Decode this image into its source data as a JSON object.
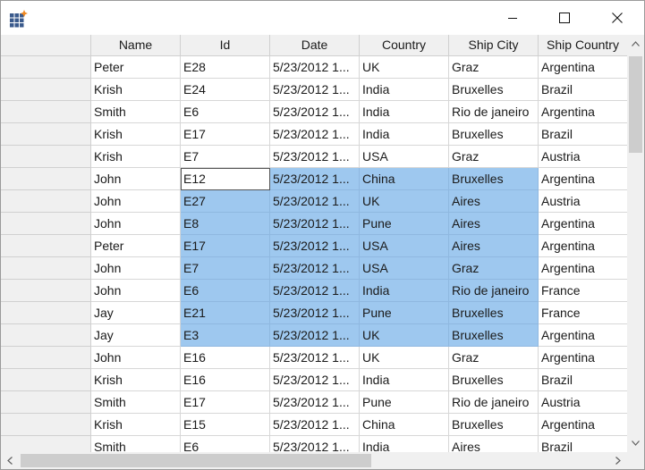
{
  "window": {
    "controls": {
      "minimize_icon": "minimize-icon",
      "maximize_icon": "maximize-icon",
      "close_icon": "close-icon"
    }
  },
  "grid": {
    "columns": [
      "Name",
      "Id",
      "Date",
      "Country",
      "Ship City",
      "Ship Country"
    ],
    "rows": [
      [
        "Peter",
        "E28",
        "5/23/2012 1...",
        "UK",
        "Graz",
        "Argentina"
      ],
      [
        "Krish",
        "E24",
        "5/23/2012 1...",
        "India",
        "Bruxelles",
        "Brazil"
      ],
      [
        "Smith",
        "E6",
        "5/23/2012 1...",
        "India",
        "Rio de janeiro",
        "Argentina"
      ],
      [
        "Krish",
        "E17",
        "5/23/2012 1...",
        "India",
        "Bruxelles",
        "Brazil"
      ],
      [
        "Krish",
        "E7",
        "5/23/2012 1...",
        "USA",
        "Graz",
        "Austria"
      ],
      [
        "John",
        "E12",
        "5/23/2012 1...",
        "China",
        "Bruxelles",
        "Argentina"
      ],
      [
        "John",
        "E27",
        "5/23/2012 1...",
        "UK",
        "Aires",
        "Austria"
      ],
      [
        "John",
        "E8",
        "5/23/2012 1...",
        "Pune",
        "Aires",
        "Argentina"
      ],
      [
        "Peter",
        "E17",
        "5/23/2012 1...",
        "USA",
        "Aires",
        "Argentina"
      ],
      [
        "John",
        "E7",
        "5/23/2012 1...",
        "USA",
        "Graz",
        "Argentina"
      ],
      [
        "John",
        "E6",
        "5/23/2012 1...",
        "India",
        "Rio de janeiro",
        "France"
      ],
      [
        "Jay",
        "E21",
        "5/23/2012 1...",
        "Pune",
        "Bruxelles",
        "France"
      ],
      [
        "Jay",
        "E3",
        "5/23/2012 1...",
        "UK",
        "Bruxelles",
        "Argentina"
      ],
      [
        "John",
        "E16",
        "5/23/2012 1...",
        "UK",
        "Graz",
        "Argentina"
      ],
      [
        "Krish",
        "E16",
        "5/23/2012 1...",
        "India",
        "Bruxelles",
        "Brazil"
      ],
      [
        "Smith",
        "E17",
        "5/23/2012 1...",
        "Pune",
        "Rio de janeiro",
        "Austria"
      ],
      [
        "Krish",
        "E15",
        "5/23/2012 1...",
        "China",
        "Bruxelles",
        "Argentina"
      ],
      [
        "Smith",
        "E6",
        "5/23/2012 1...",
        "India",
        "Aires",
        "Brazil"
      ]
    ],
    "selection": {
      "row_start": 5,
      "row_end": 12,
      "col_start": 1,
      "col_end": 4,
      "current_row": 5,
      "current_col": 1
    },
    "colors": {
      "selection": "#9ec8ef",
      "header": "#f0f0f0"
    }
  }
}
